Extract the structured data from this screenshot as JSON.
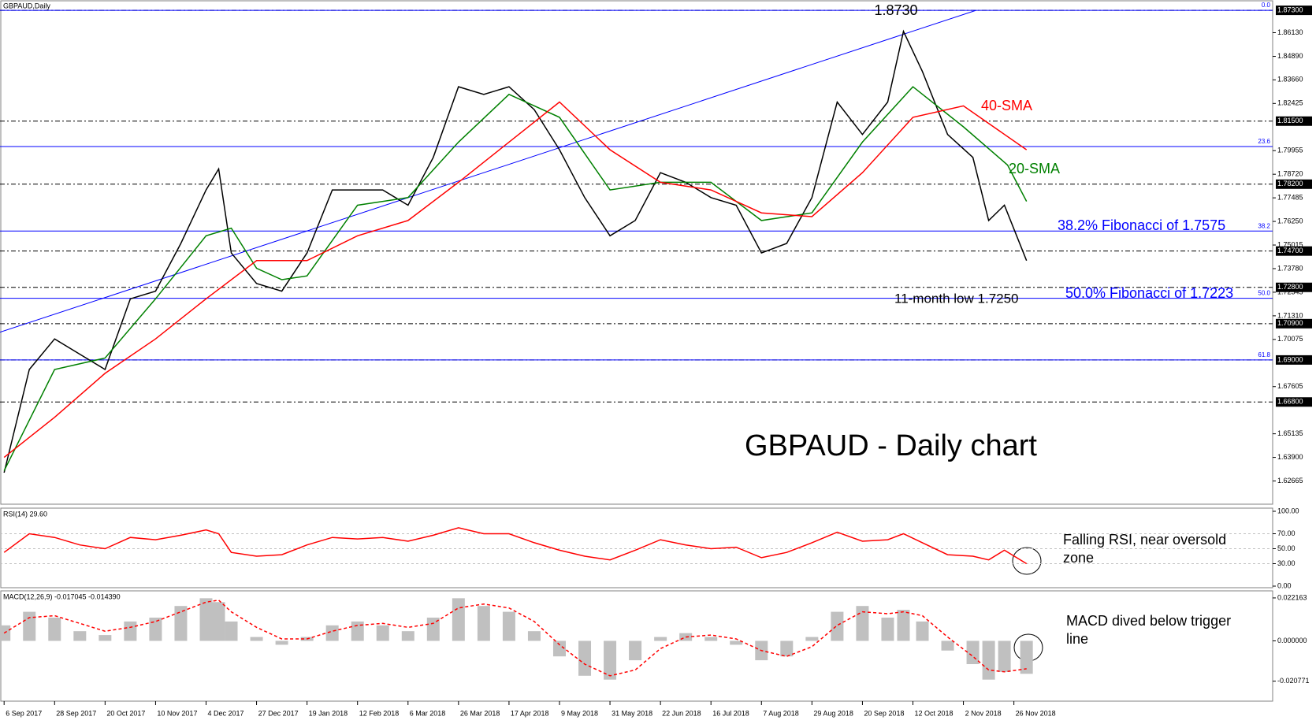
{
  "chart_data": [
    {
      "type": "line",
      "title": "GBPAUD,Daily",
      "x": [
        0,
        8,
        16,
        24,
        32,
        40,
        48,
        56,
        64,
        68,
        72,
        80,
        88,
        96,
        104,
        112,
        120,
        128,
        136,
        144,
        152,
        160,
        168,
        176,
        184,
        192,
        200,
        208,
        216,
        224,
        232,
        240,
        248,
        256,
        264,
        272,
        280,
        285,
        291,
        299,
        307,
        312,
        317,
        324
      ],
      "xlim": [
        -1.3,
        402
      ],
      "xticks": [
        {
          "value": 0,
          "label": "6 Sep 2017"
        },
        {
          "value": 16,
          "label": "28 Sep 2017"
        },
        {
          "value": 32,
          "label": "20 Oct 2017"
        },
        {
          "value": 48,
          "label": "10 Nov 2017"
        },
        {
          "value": 64,
          "label": "4 Dec 2017"
        },
        {
          "value": 80,
          "label": "27 Dec 2017"
        },
        {
          "value": 96,
          "label": "19 Jan 2018"
        },
        {
          "value": 112,
          "label": "12 Feb 2018"
        },
        {
          "value": 128,
          "label": "6 Mar 2018"
        },
        {
          "value": 144,
          "label": "26 Mar 2018"
        },
        {
          "value": 160,
          "label": "17 Apr 2018"
        },
        {
          "value": 176,
          "label": "9 May 2018"
        },
        {
          "value": 192,
          "label": "31 May 2018"
        },
        {
          "value": 208,
          "label": "22 Jun 2018"
        },
        {
          "value": 224,
          "label": "16 Jul 2018"
        },
        {
          "value": 240,
          "label": "7 Aug 2018"
        },
        {
          "value": 256,
          "label": "29 Aug 2018"
        },
        {
          "value": 272,
          "label": "20 Sep 2018"
        },
        {
          "value": 288,
          "label": "12 Oct 2018"
        },
        {
          "value": 304,
          "label": "2 Nov 2018"
        },
        {
          "value": 320,
          "label": "26 Nov 2018"
        }
      ],
      "ylim": [
        1.6145,
        1.8784
      ],
      "yticks": [
        {
          "value": 1.8613,
          "label": "1.86130"
        },
        {
          "value": 1.8489,
          "label": "1.84890"
        },
        {
          "value": 1.8366,
          "label": "1.83660"
        },
        {
          "value": 1.82425,
          "label": "1.82425"
        },
        {
          "value": 1.79955,
          "label": "1.79955"
        },
        {
          "value": 1.7872,
          "label": "1.78720"
        },
        {
          "value": 1.77485,
          "label": "1.77485"
        },
        {
          "value": 1.7625,
          "label": "1.76250"
        },
        {
          "value": 1.75015,
          "label": "1.75015"
        },
        {
          "value": 1.7378,
          "label": "1.73780"
        },
        {
          "value": 1.72545,
          "label": "1.72545"
        },
        {
          "value": 1.7131,
          "label": "1.71310"
        },
        {
          "value": 1.70075,
          "label": "1.70075"
        },
        {
          "value": 1.67605,
          "label": "1.67605"
        },
        {
          "value": 1.65135,
          "label": "1.65135"
        },
        {
          "value": 1.639,
          "label": "1.63900"
        },
        {
          "value": 1.62665,
          "label": "1.62665"
        }
      ],
      "levels": [
        {
          "value": 1.873,
          "label": "1.87300"
        },
        {
          "value": 1.815,
          "label": "1.81500"
        },
        {
          "value": 1.782,
          "label": "1.78200"
        },
        {
          "value": 1.747,
          "label": "1.74700"
        },
        {
          "value": 1.728,
          "label": "1.72800"
        },
        {
          "value": 1.709,
          "label": "1.70900"
        },
        {
          "value": 1.69,
          "label": "1.69000"
        },
        {
          "value": 1.668,
          "label": "1.66800"
        }
      ],
      "fibonacci": [
        {
          "value": 1.873,
          "label": "0.0"
        },
        {
          "value": 1.8017,
          "label": "23.6"
        },
        {
          "value": 1.7575,
          "label": "38.2"
        },
        {
          "value": 1.7223,
          "label": "50.0"
        },
        {
          "value": 1.69,
          "label": "61.8"
        }
      ],
      "trendline": {
        "x": [
          -1.3,
          308
        ],
        "values": [
          1.7045,
          1.873
        ]
      },
      "series": [
        {
          "color": "#000000",
          "values": [
            1.631,
            1.685,
            1.701,
            1.693,
            1.685,
            1.722,
            1.726,
            1.751,
            1.779,
            1.79,
            1.746,
            1.73,
            1.726,
            1.746,
            1.779,
            1.779,
            1.779,
            1.771,
            1.796,
            1.833,
            1.829,
            1.833,
            1.821,
            1.8,
            1.775,
            1.755,
            1.763,
            1.788,
            1.783,
            1.775,
            1.771,
            1.746,
            1.751,
            1.775,
            1.825,
            1.808,
            1.825,
            1.862,
            1.841,
            1.808,
            1.796,
            1.763,
            1.771,
            1.742
          ]
        },
        {
          "color": "#008000",
          "x": [
            0,
            16,
            32,
            48,
            64,
            72,
            80,
            88,
            96,
            112,
            128,
            144,
            160,
            176,
            192,
            208,
            224,
            240,
            256,
            272,
            288,
            304,
            318,
            324
          ],
          "values": [
            1.632,
            1.685,
            1.691,
            1.722,
            1.755,
            1.759,
            1.738,
            1.732,
            1.734,
            1.771,
            1.775,
            1.804,
            1.829,
            1.817,
            1.779,
            1.783,
            1.783,
            1.763,
            1.767,
            1.804,
            1.833,
            1.812,
            1.792,
            1.773
          ]
        },
        {
          "color": "#ff0000",
          "x": [
            0,
            16,
            32,
            48,
            64,
            80,
            96,
            112,
            128,
            144,
            160,
            176,
            192,
            208,
            224,
            240,
            256,
            272,
            288,
            304,
            324
          ],
          "values": [
            1.639,
            1.66,
            1.683,
            1.701,
            1.722,
            1.742,
            1.742,
            1.755,
            1.763,
            1.783,
            1.804,
            1.825,
            1.8,
            1.783,
            1.779,
            1.767,
            1.765,
            1.788,
            1.817,
            1.823,
            1.8
          ]
        }
      ],
      "annotations": [
        {
          "text": "1.8730",
          "color": "#000000"
        },
        {
          "text": "40-SMA",
          "color": "#ff0000"
        },
        {
          "text": "20-SMA",
          "color": "#008000"
        },
        {
          "text": "38.2% Fibonacci of 1.7575",
          "color": "#0000ff"
        },
        {
          "text": "50.0% Fibonacci of 1.7223",
          "color": "#0000ff"
        },
        {
          "text": "11-month low 1.7250",
          "color": "#000000"
        },
        {
          "text": "GBPAUD - Daily chart",
          "color": "#000000"
        }
      ]
    },
    {
      "type": "line",
      "title": "RSI(14) 29.60",
      "ylim": [
        -2.1,
        104.2
      ],
      "yticks": [
        {
          "value": 100,
          "label": "100.00"
        },
        {
          "value": 70,
          "label": "70.00"
        },
        {
          "value": 50,
          "label": "50.00"
        },
        {
          "value": 30,
          "label": "30.00"
        },
        {
          "value": 0,
          "label": "0.00"
        }
      ],
      "series": [
        {
          "color": "#ff0000",
          "values": [
            45,
            70,
            65,
            55,
            50,
            65,
            62,
            68,
            75,
            70,
            45,
            40,
            42,
            55,
            65,
            63,
            65,
            60,
            68,
            78,
            70,
            70,
            58,
            48,
            40,
            35,
            48,
            62,
            55,
            50,
            52,
            38,
            45,
            58,
            72,
            60,
            62,
            70,
            58,
            42,
            40,
            35,
            48,
            30
          ]
        }
      ],
      "annotation": [
        "Falling RSI, near oversold",
        "zone"
      ]
    },
    {
      "type": "histogram-line",
      "title": "MACD(12,26,9) -0.017045 -0.014390",
      "ylim": [
        -0.0311,
        0.0258
      ],
      "yticks": [
        {
          "value": 0.022163,
          "label": "0.022163"
        },
        {
          "value": 0,
          "label": "0.000000"
        },
        {
          "value": -0.020771,
          "label": "-0.020771"
        }
      ],
      "series": [
        {
          "color": "#c0c0c0",
          "values": [
            0.008,
            0.015,
            0.012,
            0.005,
            0.003,
            0.01,
            0.012,
            0.018,
            0.022,
            0.02,
            0.01,
            0.002,
            -0.002,
            0.002,
            0.008,
            0.01,
            0.008,
            0.005,
            0.012,
            0.022,
            0.018,
            0.015,
            0.005,
            -0.008,
            -0.018,
            -0.02,
            -0.01,
            0.002,
            0.004,
            0.002,
            -0.002,
            -0.01,
            -0.008,
            0.002,
            0.015,
            0.018,
            0.012,
            0.016,
            0.01,
            -0.005,
            -0.012,
            -0.02,
            -0.016,
            -0.017
          ]
        },
        {
          "color": "#ff0000",
          "values": [
            0.004,
            0.012,
            0.013,
            0.009,
            0.005,
            0.007,
            0.01,
            0.015,
            0.02,
            0.021,
            0.015,
            0.007,
            0.001,
            0.001,
            0.005,
            0.008,
            0.009,
            0.007,
            0.009,
            0.017,
            0.019,
            0.017,
            0.01,
            -0.002,
            -0.012,
            -0.018,
            -0.015,
            -0.004,
            0.002,
            0.003,
            0.001,
            -0.005,
            -0.008,
            -0.003,
            0.008,
            0.015,
            0.014,
            0.015,
            0.013,
            0.002,
            -0.008,
            -0.015,
            -0.016,
            -0.0144
          ]
        }
      ],
      "annotation": [
        "MACD dived below trigger",
        "line"
      ]
    }
  ]
}
